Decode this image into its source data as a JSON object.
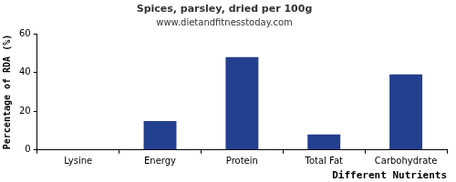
{
  "chart_data": {
    "type": "bar",
    "title": "Spices, parsley, dried per 100g",
    "subtitle": "www.dietandfitnesstoday.com",
    "x_label": "Different Nutrients",
    "y_label": "Percentage of RDA (%)",
    "categories": [
      "Lysine",
      "Energy",
      "Protein",
      "Total Fat",
      "Carbohydrate"
    ],
    "values": [
      0,
      15,
      48,
      8,
      39
    ],
    "color": "#233f8f",
    "ylim": [
      0,
      60
    ],
    "yticks": [
      0,
      20,
      40,
      60
    ],
    "grid": false
  }
}
